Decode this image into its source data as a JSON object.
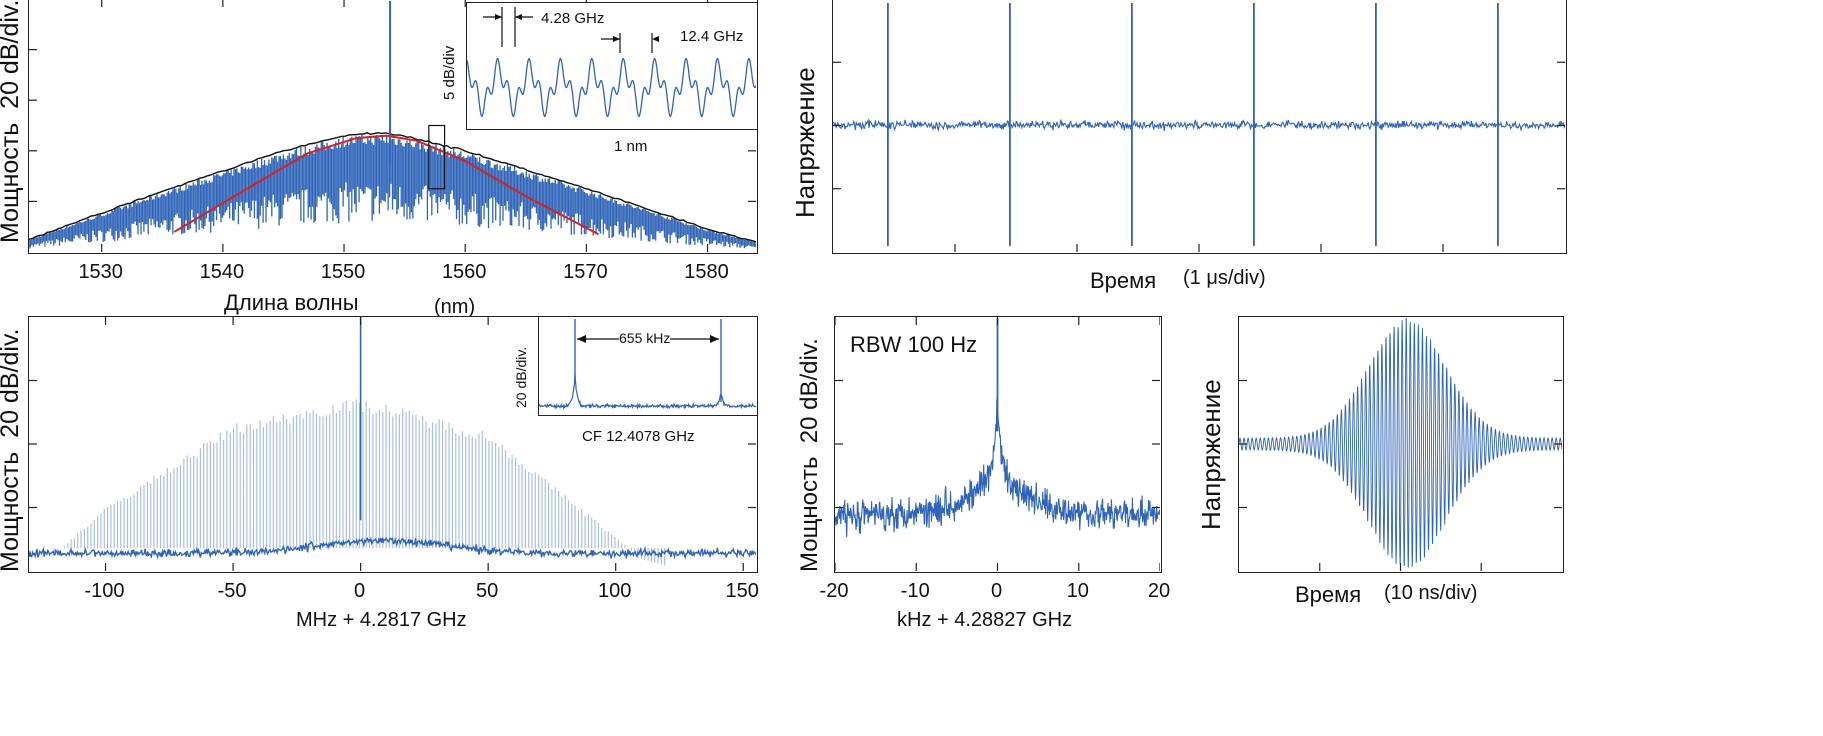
{
  "colors": {
    "trace": "#2f64b8",
    "trace_light": "#a9c0e6",
    "envelope": "#111111",
    "fit": "#d8201f",
    "axis": "#222222"
  },
  "chart_data": [
    {
      "id": "optical",
      "type": "line",
      "xlabel": "Длина волны",
      "xunit": "(nm)",
      "ylabel": "Мощность",
      "yunit": "20 dB/div.",
      "xlim": [
        1524,
        1584
      ],
      "xticks": [
        1530,
        1540,
        1550,
        1560,
        1570,
        1580
      ],
      "yticks_div": 5,
      "series": [
        {
          "kind": "comb_envelope_top",
          "x": [
            1524,
            1535,
            1545,
            1550,
            1553,
            1555,
            1560,
            1570,
            1580,
            1584
          ],
          "y": [
            0.05,
            0.24,
            0.4,
            0.46,
            0.47,
            0.46,
            0.4,
            0.25,
            0.09,
            0.04
          ]
        },
        {
          "kind": "fit_curve",
          "x": [
            1536,
            1542,
            1547,
            1551,
            1553.5,
            1556,
            1560,
            1565,
            1571
          ],
          "y": [
            0.08,
            0.25,
            0.39,
            0.45,
            0.46,
            0.44,
            0.36,
            0.22,
            0.07
          ]
        },
        {
          "kind": "pump_line",
          "x": [
            1553.8
          ],
          "y": [
            1.0
          ]
        }
      ],
      "box_marker_x": [
        1557,
        1558.3
      ],
      "inset": {
        "xlabel": "1 nm",
        "ylabel": "5 dB/div",
        "annotations": [
          "4.28 GHz",
          "12.4 GHz"
        ]
      }
    },
    {
      "id": "pulse_train",
      "type": "line",
      "xlabel": "Время",
      "xunit": "(1 μs/div)",
      "ylabel": "Напряжение",
      "yticks_div": 4,
      "xticks_div": 6,
      "pulse_positions_div": [
        0.45,
        1.45,
        2.45,
        3.45,
        4.45,
        5.45
      ]
    },
    {
      "id": "rf_comb",
      "type": "line",
      "xlabel": "MHz + 4.2817 GHz",
      "ylabel": "Мощность",
      "yunit": "20 dB/div.",
      "xlim": [
        -130,
        155
      ],
      "xticks": [
        -100,
        -50,
        0,
        50,
        100,
        150
      ],
      "yticks_div": 4,
      "series": [
        {
          "kind": "envelope",
          "x": [
            -120,
            -100,
            -50,
            -10,
            0,
            10,
            50,
            90,
            110,
            120
          ],
          "y": [
            0.07,
            0.25,
            0.58,
            0.67,
            0.68,
            0.66,
            0.55,
            0.22,
            0.05,
            0.02
          ]
        },
        {
          "kind": "center_line",
          "x": [
            0
          ],
          "y": [
            1.0
          ]
        }
      ],
      "inset": {
        "xlabel": "CF 12.4078 GHz",
        "ylabel": "20 dB/div.",
        "annotations": [
          "655 kHz"
        ]
      }
    },
    {
      "id": "rf_beat",
      "type": "line",
      "title": "RBW 100 Hz",
      "xlabel": "kHz + 4.28827 GHz",
      "ylabel": "Мощность",
      "yunit": "20 dB/div.",
      "xlim": [
        -20,
        20
      ],
      "xticks": [
        -20,
        -10,
        0,
        10,
        20
      ],
      "yticks_div": 4
    },
    {
      "id": "single_pulse",
      "type": "line",
      "xlabel": "Время",
      "xunit": "(10 ns/div)",
      "ylabel": "Напряжение",
      "yticks_div": 4,
      "xticks_div": 4
    }
  ]
}
